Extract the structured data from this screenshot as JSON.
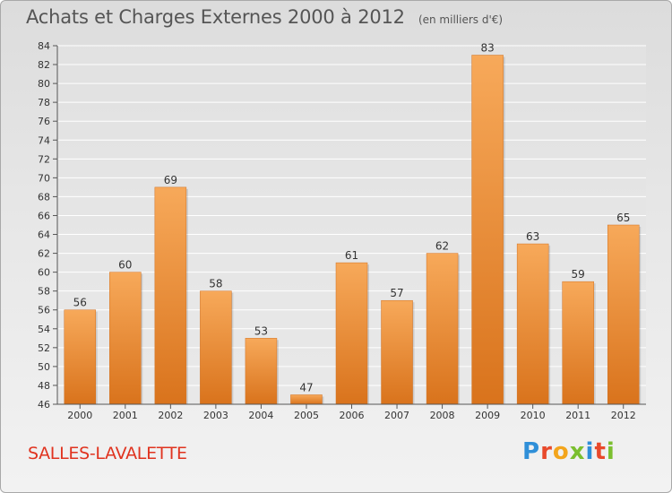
{
  "title": "Achats et Charges Externes 2000 à 2012",
  "subtitle": "(en milliers d'€)",
  "commune": "SALLES-LAVALETTE",
  "logo": {
    "text": "Proxiti",
    "letter_colors": [
      "#2f8fd8",
      "#e8492b",
      "#f3a51c",
      "#7bbf2f",
      "#2f8fd8",
      "#e8492b",
      "#7bbf2f"
    ]
  },
  "colors": {
    "bar_top": "#f7a95a",
    "bar_bottom": "#d9731c",
    "grid": "#ffffff",
    "axis_text": "#333333",
    "title": "#555555",
    "commune": "#e0331f"
  },
  "chart_data": {
    "type": "bar",
    "categories": [
      "2000",
      "2001",
      "2002",
      "2003",
      "2004",
      "2005",
      "2006",
      "2007",
      "2008",
      "2009",
      "2010",
      "2011",
      "2012"
    ],
    "values": [
      56,
      60,
      69,
      58,
      53,
      47,
      61,
      57,
      62,
      83,
      63,
      59,
      65
    ],
    "data_labels": [
      "56",
      "60",
      "69",
      "58",
      "53",
      "47",
      "61",
      "57",
      "62",
      "83",
      "63",
      "59",
      "65"
    ],
    "ylim": [
      46,
      84
    ],
    "yticks": [
      46,
      48,
      50,
      52,
      54,
      56,
      58,
      60,
      62,
      64,
      66,
      68,
      70,
      72,
      74,
      76,
      78,
      80,
      82,
      84
    ],
    "grid": true,
    "xlabel": "",
    "ylabel": ""
  }
}
